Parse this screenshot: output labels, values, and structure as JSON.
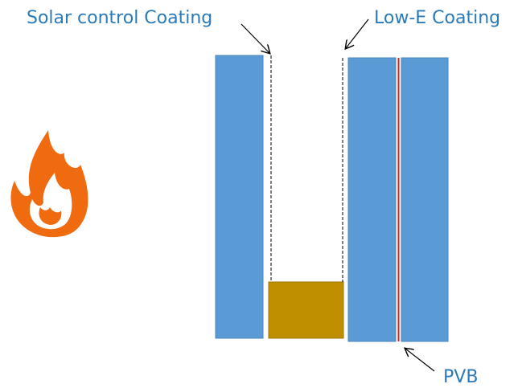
{
  "labels": {
    "solar": "Solar control Coating",
    "lowe": "Low-E Coating",
    "pvb": "PVB"
  }
}
